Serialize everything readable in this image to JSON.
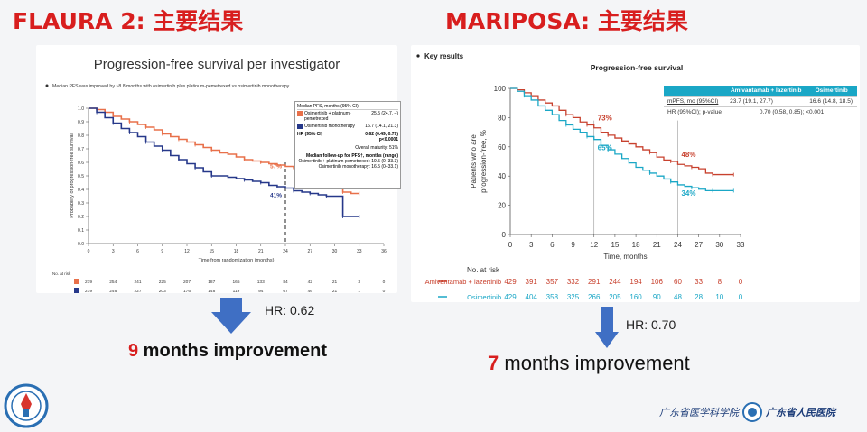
{
  "left": {
    "title": "FLAURA 2: 主要结果",
    "chart_title": "Progression-free survival per investigator",
    "bullet": "Median PFS was improved by ~8.8 months with osimertinib plus platinum-pemetrexed vs osimertinib monotherapy",
    "hr": "HR: 0.62",
    "improve_num": "9",
    "improve_text": " months improvement",
    "legend": {
      "header": "Median PFS, months (95% CI)",
      "rows": [
        {
          "label": "Osimertinib + platinum-pemetrexed",
          "value": "25.5 (24.7, –)",
          "color": "#e8704a"
        },
        {
          "label": "Osimertinib monotherapy",
          "value": "16.7 (14.1, 21.3)",
          "color": "#26388a"
        }
      ],
      "hr_label": "HR (95% CI)",
      "hr_value": "0.62 (0.49, 0.79)",
      "p_value": "p<0.0001",
      "maturity": "Overall maturity: 51%",
      "followup_title": "Median follow-up for PFS†, months (range)",
      "followup_1": "Osimertinib + platinum-pemetrexed: 19.5 (0–33.3)",
      "followup_2": "Osimertinib monotherapy: 16.5 (0–33.1)"
    },
    "at_risk_label": "No. at risk",
    "at_risk_rows": [
      {
        "color": "#e8704a",
        "values": [
          "279",
          "254",
          "241",
          "225",
          "207",
          "187",
          "165",
          "133",
          "84",
          "42",
          "21",
          "3",
          "0"
        ]
      },
      {
        "color": "#26388a",
        "values": [
          "279",
          "246",
          "227",
          "203",
          "176",
          "148",
          "119",
          "94",
          "67",
          "46",
          "21",
          "1",
          "0"
        ]
      }
    ]
  },
  "right": {
    "title": "MARIPOSA: 主要结果",
    "key_results": "Key results",
    "hr": "HR: 0.70",
    "improve_num": "7",
    "improve_text": " months improvement",
    "table": {
      "col1": "Amivantamab + lazertinib",
      "col2": "Osimertinib",
      "row1_label": "mPFS, mo (95%CI)",
      "row1_v1": "23.7 (19.1, 27.7)",
      "row1_v2": "16.6 (14.8, 18.5)",
      "row2_label": "HR (95%CI); p-value",
      "row2_v": "0.70 (0.58, 0.85); <0.001"
    },
    "at_risk_label": "No. at risk",
    "at_risk_rows": [
      {
        "name": "Amivantamab + lazertinib",
        "color": "#c8412e",
        "values": [
          "429",
          "391",
          "357",
          "332",
          "291",
          "244",
          "194",
          "106",
          "60",
          "33",
          "8",
          "0"
        ]
      },
      {
        "name": "Osimertinib",
        "color": "#1aa7c6",
        "values": [
          "429",
          "404",
          "358",
          "325",
          "266",
          "205",
          "160",
          "90",
          "48",
          "28",
          "10",
          "0"
        ]
      }
    ]
  },
  "logos": {
    "left_caption": "",
    "right_text_1": "广东省医学科学院",
    "right_text_2": "广东省人民医院"
  },
  "chart_data": [
    {
      "type": "line",
      "title": "Progression-free survival per investigator",
      "xlabel": "Time from randomization (months)",
      "ylabel": "Probability of progression-free survival",
      "xlim": [
        0,
        36
      ],
      "ylim": [
        0,
        1.0
      ],
      "xticks": [
        0,
        3,
        6,
        9,
        12,
        15,
        18,
        21,
        24,
        27,
        30,
        33,
        36
      ],
      "yticks": [
        0,
        0.1,
        0.2,
        0.3,
        0.4,
        0.5,
        0.6,
        0.7,
        0.8,
        0.9,
        1.0
      ],
      "grid": false,
      "annotations": [
        {
          "text": "57%",
          "x": 24,
          "y": 0.57
        },
        {
          "text": "41%",
          "x": 24,
          "y": 0.41
        }
      ],
      "series": [
        {
          "name": "Osimertinib + platinum-pemetrexed",
          "color": "#e8704a",
          "x": [
            0,
            1,
            2,
            3,
            4,
            5,
            6,
            7,
            8,
            9,
            10,
            11,
            12,
            13,
            14,
            15,
            16,
            17,
            18,
            19,
            20,
            21,
            22,
            23,
            24,
            25,
            26,
            27,
            28,
            29,
            30,
            31,
            32,
            33
          ],
          "y": [
            1.0,
            0.99,
            0.97,
            0.94,
            0.92,
            0.9,
            0.88,
            0.86,
            0.84,
            0.81,
            0.79,
            0.77,
            0.75,
            0.73,
            0.71,
            0.69,
            0.67,
            0.66,
            0.64,
            0.62,
            0.61,
            0.6,
            0.59,
            0.58,
            0.57,
            0.56,
            0.52,
            0.5,
            0.48,
            0.47,
            0.43,
            0.38,
            0.37,
            0.37
          ]
        },
        {
          "name": "Osimertinib monotherapy",
          "color": "#26388a",
          "x": [
            0,
            1,
            2,
            3,
            4,
            5,
            6,
            7,
            8,
            9,
            10,
            11,
            12,
            13,
            14,
            15,
            16,
            17,
            18,
            19,
            20,
            21,
            22,
            23,
            24,
            25,
            26,
            27,
            28,
            29,
            30,
            31,
            32,
            33
          ],
          "y": [
            1.0,
            0.97,
            0.93,
            0.89,
            0.85,
            0.82,
            0.79,
            0.75,
            0.72,
            0.69,
            0.65,
            0.62,
            0.59,
            0.56,
            0.53,
            0.5,
            0.5,
            0.49,
            0.48,
            0.47,
            0.46,
            0.45,
            0.43,
            0.42,
            0.41,
            0.39,
            0.38,
            0.37,
            0.36,
            0.35,
            0.35,
            0.2,
            0.2,
            0.2
          ]
        }
      ]
    },
    {
      "type": "line",
      "title": "Progression-free survival",
      "xlabel": "Time, months",
      "ylabel": "Patients who are progression-free, %",
      "xlim": [
        0,
        33
      ],
      "ylim": [
        0,
        100
      ],
      "xticks": [
        0,
        3,
        6,
        9,
        12,
        15,
        18,
        21,
        24,
        27,
        30,
        33
      ],
      "yticks": [
        0,
        20,
        40,
        60,
        80,
        100
      ],
      "grid": false,
      "annotations": [
        {
          "text": "73%",
          "x": 12,
          "y": 73
        },
        {
          "text": "65%",
          "x": 12,
          "y": 65
        },
        {
          "text": "48%",
          "x": 24,
          "y": 48
        },
        {
          "text": "34%",
          "x": 24,
          "y": 34
        }
      ],
      "series": [
        {
          "name": "Amivantamab + lazertinib",
          "color": "#c8412e",
          "x": [
            0,
            1,
            2,
            3,
            4,
            5,
            6,
            7,
            8,
            9,
            10,
            11,
            12,
            13,
            14,
            15,
            16,
            17,
            18,
            19,
            20,
            21,
            22,
            23,
            24,
            25,
            26,
            27,
            28,
            29,
            30,
            31,
            32
          ],
          "y": [
            100,
            99,
            97,
            95,
            92,
            90,
            88,
            85,
            82,
            80,
            77,
            75,
            73,
            70,
            68,
            66,
            64,
            62,
            60,
            58,
            56,
            53,
            51,
            50,
            48,
            47,
            46,
            45,
            42,
            41,
            41,
            41,
            41
          ]
        },
        {
          "name": "Osimertinib",
          "color": "#1aa7c6",
          "x": [
            0,
            1,
            2,
            3,
            4,
            5,
            6,
            7,
            8,
            9,
            10,
            11,
            12,
            13,
            14,
            15,
            16,
            17,
            18,
            19,
            20,
            21,
            22,
            23,
            24,
            25,
            26,
            27,
            28,
            29,
            30,
            31,
            32
          ],
          "y": [
            100,
            98,
            95,
            92,
            88,
            85,
            82,
            78,
            75,
            72,
            70,
            67,
            65,
            61,
            58,
            55,
            52,
            49,
            46,
            44,
            42,
            40,
            38,
            36,
            34,
            33,
            32,
            31,
            30,
            30,
            30,
            30,
            30
          ]
        }
      ]
    }
  ]
}
